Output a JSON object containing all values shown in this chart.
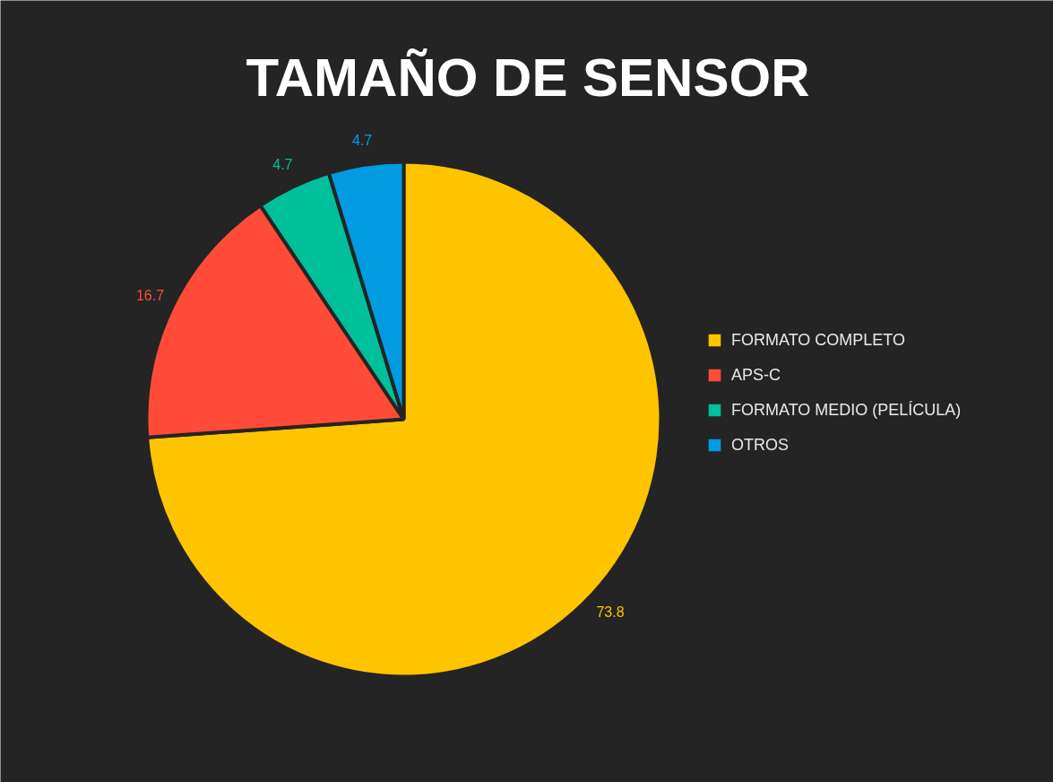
{
  "chart_data": {
    "type": "pie",
    "title": "TAMAÑO DE SENSOR",
    "categories": [
      "FORMATO COMPLETO",
      "APS-C",
      "FORMATO MEDIO (PELÍCULA)",
      "OTROS"
    ],
    "values": [
      73.8,
      16.7,
      4.7,
      4.7
    ],
    "colors": [
      "#ffc400",
      "#ff4b38",
      "#00bf9b",
      "#009be0"
    ],
    "data_labels": true,
    "legend": "right"
  }
}
